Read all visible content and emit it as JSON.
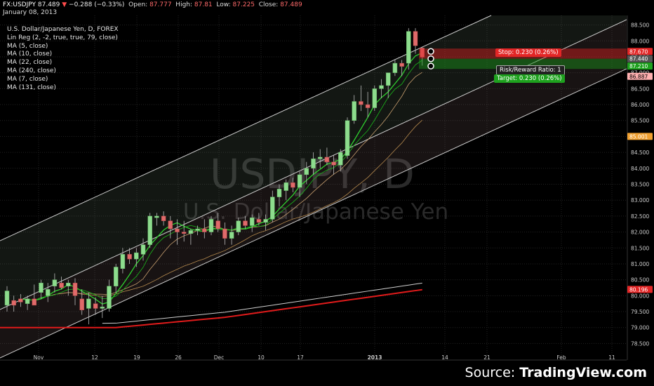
{
  "header": {
    "symbol": "FX:USDJPY",
    "last": "87.489",
    "arrow": "▼",
    "change": "−0.288 (−0.33%)",
    "open_label": "Open:",
    "open": "87.777",
    "high_label": "High:",
    "high": "87.81",
    "low_label": "Low:",
    "low": "87.225",
    "close_label": "Close:",
    "close": "87.489",
    "date": "January 08, 2013"
  },
  "indicators": [
    "U.S. Dollar/Japanese Yen, D, FOREX",
    "Lin Reg (2, -2, true, true, 79, close)",
    "MA (5, close)",
    "MA (10, close)",
    "MA (22, close)",
    "MA (240, close)",
    "MA (7, close)",
    "MA (131, close)"
  ],
  "watermark": {
    "ticker": "USDJPY, D",
    "name": "U.S. Dollar/Japanese Yen"
  },
  "source": {
    "prefix": "Source: ",
    "brand": "TradingView.com"
  },
  "trade_tool": {
    "stop": "Stop: 0.230 (0.26%)",
    "ratio": "Risk/Reward Ratio: 1",
    "target": "Target: 0.230 (0.26%)"
  },
  "price_labels": [
    {
      "text": "87.670",
      "value": 87.67,
      "color": "#e32626"
    },
    {
      "text": "87.440",
      "value": 87.44,
      "color": "#555555"
    },
    {
      "text": "87.210",
      "value": 87.21,
      "color": "#1ea11e"
    },
    {
      "text": "86.887",
      "value": 86.887,
      "color": "#ffb0b0"
    },
    {
      "text": "85.001",
      "value": 85.001,
      "color": "#f0a030"
    },
    {
      "text": "80.196",
      "value": 80.196,
      "color": "#e32626"
    }
  ],
  "colors": {
    "up": "#8ddc8d",
    "down": "#e06a6a",
    "channel": "#cccccc",
    "ma_fast": "#2fd12f",
    "ma_slow_red": "#e01b1b",
    "ma_grey": "#cfcfcf",
    "ma_tan": "#b58a4e"
  },
  "chart_data": {
    "type": "candlestick",
    "ylim": [
      78.2,
      88.8
    ],
    "y_ticks": [
      "78.500",
      "79.000",
      "79.500",
      "80.000",
      "80.500",
      "81.000",
      "81.500",
      "82.000",
      "82.500",
      "83.000",
      "83.500",
      "84.000",
      "84.500",
      "85.000",
      "85.500",
      "86.000",
      "86.500",
      "87.000",
      "87.500",
      "88.000",
      "88.500"
    ],
    "x_tick_labels": [
      "Nov",
      "12",
      "19",
      "26",
      "Dec",
      "10",
      "17",
      "2013",
      "14",
      "21",
      "Feb",
      "11"
    ],
    "candles": [
      {
        "o": 79.7,
        "h": 80.3,
        "l": 79.5,
        "c": 80.15
      },
      {
        "o": 79.85,
        "h": 80.0,
        "l": 79.5,
        "c": 79.7
      },
      {
        "o": 79.9,
        "h": 80.05,
        "l": 79.65,
        "c": 79.8
      },
      {
        "o": 79.75,
        "h": 80.0,
        "l": 79.55,
        "c": 79.9
      },
      {
        "o": 79.9,
        "h": 80.35,
        "l": 79.8,
        "c": 79.7
      },
      {
        "o": 80.1,
        "h": 80.5,
        "l": 79.9,
        "c": 80.4
      },
      {
        "o": 80.0,
        "h": 80.4,
        "l": 79.8,
        "c": 80.2
      },
      {
        "o": 80.3,
        "h": 80.7,
        "l": 80.1,
        "c": 80.5
      },
      {
        "o": 80.4,
        "h": 80.6,
        "l": 80.2,
        "c": 80.25
      },
      {
        "o": 80.3,
        "h": 80.5,
        "l": 80.0,
        "c": 80.4
      },
      {
        "o": 80.4,
        "h": 80.55,
        "l": 79.7,
        "c": 80.0
      },
      {
        "o": 79.9,
        "h": 80.2,
        "l": 79.4,
        "c": 79.55
      },
      {
        "o": 79.6,
        "h": 80.1,
        "l": 79.1,
        "c": 79.9
      },
      {
        "o": 79.75,
        "h": 79.95,
        "l": 79.4,
        "c": 79.6
      },
      {
        "o": 79.6,
        "h": 80.0,
        "l": 79.3,
        "c": 79.65
      },
      {
        "o": 79.6,
        "h": 80.5,
        "l": 79.5,
        "c": 80.3
      },
      {
        "o": 80.3,
        "h": 81.0,
        "l": 80.1,
        "c": 80.9
      },
      {
        "o": 80.85,
        "h": 81.5,
        "l": 80.7,
        "c": 81.3
      },
      {
        "o": 81.3,
        "h": 81.5,
        "l": 81.0,
        "c": 81.15
      },
      {
        "o": 81.15,
        "h": 81.5,
        "l": 80.9,
        "c": 81.35
      },
      {
        "o": 81.3,
        "h": 81.8,
        "l": 81.1,
        "c": 81.6
      },
      {
        "o": 81.6,
        "h": 82.6,
        "l": 81.5,
        "c": 82.5
      },
      {
        "o": 82.45,
        "h": 82.6,
        "l": 82.2,
        "c": 82.5
      },
      {
        "o": 82.5,
        "h": 82.65,
        "l": 82.2,
        "c": 82.35
      },
      {
        "o": 82.35,
        "h": 82.5,
        "l": 81.8,
        "c": 82.1
      },
      {
        "o": 82.1,
        "h": 82.4,
        "l": 81.6,
        "c": 82.0
      },
      {
        "o": 82.0,
        "h": 82.35,
        "l": 81.7,
        "c": 81.95
      },
      {
        "o": 81.95,
        "h": 82.1,
        "l": 81.6,
        "c": 82.05
      },
      {
        "o": 82.05,
        "h": 82.2,
        "l": 81.9,
        "c": 82.1
      },
      {
        "o": 82.1,
        "h": 82.4,
        "l": 81.8,
        "c": 82.0
      },
      {
        "o": 82.0,
        "h": 82.5,
        "l": 81.9,
        "c": 82.4
      },
      {
        "o": 82.35,
        "h": 82.6,
        "l": 82.0,
        "c": 82.1
      },
      {
        "o": 82.1,
        "h": 82.3,
        "l": 81.6,
        "c": 81.8
      },
      {
        "o": 81.8,
        "h": 82.2,
        "l": 81.6,
        "c": 82.0
      },
      {
        "o": 82.0,
        "h": 82.45,
        "l": 81.9,
        "c": 82.35
      },
      {
        "o": 82.35,
        "h": 82.5,
        "l": 82.1,
        "c": 82.2
      },
      {
        "o": 82.2,
        "h": 82.55,
        "l": 82.0,
        "c": 82.45
      },
      {
        "o": 82.4,
        "h": 82.6,
        "l": 82.2,
        "c": 82.3
      },
      {
        "o": 82.3,
        "h": 82.55,
        "l": 82.05,
        "c": 82.4
      },
      {
        "o": 82.4,
        "h": 83.3,
        "l": 82.3,
        "c": 83.1
      },
      {
        "o": 83.1,
        "h": 83.5,
        "l": 82.8,
        "c": 83.35
      },
      {
        "o": 83.3,
        "h": 83.65,
        "l": 83.0,
        "c": 83.55
      },
      {
        "o": 83.55,
        "h": 83.7,
        "l": 83.25,
        "c": 83.4
      },
      {
        "o": 83.4,
        "h": 83.9,
        "l": 83.1,
        "c": 83.8
      },
      {
        "o": 83.8,
        "h": 84.2,
        "l": 83.5,
        "c": 84.0
      },
      {
        "o": 84.0,
        "h": 84.5,
        "l": 83.8,
        "c": 84.3
      },
      {
        "o": 84.3,
        "h": 84.6,
        "l": 84.0,
        "c": 84.35
      },
      {
        "o": 84.35,
        "h": 84.65,
        "l": 84.1,
        "c": 84.2
      },
      {
        "o": 84.2,
        "h": 84.4,
        "l": 83.8,
        "c": 84.1
      },
      {
        "o": 84.1,
        "h": 84.6,
        "l": 83.9,
        "c": 84.5
      },
      {
        "o": 84.4,
        "h": 85.6,
        "l": 84.3,
        "c": 85.5
      },
      {
        "o": 85.5,
        "h": 86.3,
        "l": 85.4,
        "c": 86.1
      },
      {
        "o": 86.1,
        "h": 86.6,
        "l": 85.8,
        "c": 86.0
      },
      {
        "o": 86.0,
        "h": 86.4,
        "l": 85.6,
        "c": 85.9
      },
      {
        "o": 85.9,
        "h": 86.6,
        "l": 85.8,
        "c": 86.5
      },
      {
        "o": 86.5,
        "h": 86.8,
        "l": 86.2,
        "c": 86.6
      },
      {
        "o": 86.6,
        "h": 87.0,
        "l": 86.2,
        "c": 87.0
      },
      {
        "o": 87.0,
        "h": 87.4,
        "l": 86.9,
        "c": 87.3
      },
      {
        "o": 87.3,
        "h": 87.4,
        "l": 86.9,
        "c": 87.2
      },
      {
        "o": 87.3,
        "h": 88.4,
        "l": 87.1,
        "c": 88.3
      },
      {
        "o": 88.3,
        "h": 88.4,
        "l": 87.6,
        "c": 87.85
      },
      {
        "o": 87.777,
        "h": 87.81,
        "l": 87.225,
        "c": 87.489
      }
    ]
  }
}
